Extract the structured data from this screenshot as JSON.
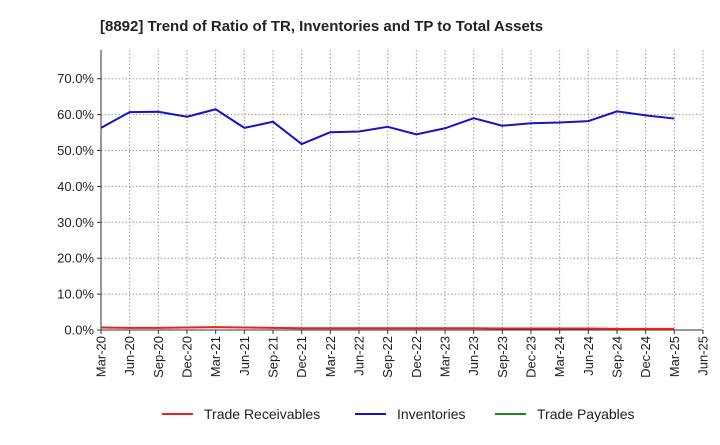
{
  "chart_data": {
    "type": "line",
    "title": "[8892]  Trend of Ratio of TR, Inventories and TP to Total Assets",
    "xlabel": "",
    "ylabel": "",
    "ylim": [
      0,
      0.78
    ],
    "yticks": [
      0,
      0.1,
      0.2,
      0.3,
      0.4,
      0.5,
      0.6,
      0.7
    ],
    "ytick_labels": [
      "0.0%",
      "10.0%",
      "20.0%",
      "30.0%",
      "40.0%",
      "50.0%",
      "60.0%",
      "70.0%"
    ],
    "x": [
      "Mar-20",
      "Jun-20",
      "Sep-20",
      "Dec-20",
      "Mar-21",
      "Jun-21",
      "Sep-21",
      "Dec-21",
      "Mar-22",
      "Jun-22",
      "Sep-22",
      "Dec-22",
      "Mar-23",
      "Jun-23",
      "Sep-23",
      "Dec-23",
      "Mar-24",
      "Jun-24",
      "Sep-24",
      "Dec-24",
      "Mar-25",
      "Jun-25"
    ],
    "xtick_labels": [
      "Mar-20",
      "Jun-20",
      "Sep-20",
      "Dec-20",
      "Mar-21",
      "Jun-21",
      "Sep-21",
      "Dec-21",
      "Mar-22",
      "Jun-22",
      "Sep-22",
      "Dec-22",
      "Mar-23",
      "Jun-23",
      "Sep-23",
      "Dec-23",
      "Mar-24",
      "Jun-24",
      "Sep-24",
      "Dec-24",
      "Mar-25",
      "Jun-25"
    ],
    "grid": true,
    "legend_position": "bottom",
    "series": [
      {
        "name": "Trade Receivables",
        "color": "#e8221c",
        "values": [
          0.007,
          0.006,
          0.006,
          0.007,
          0.008,
          0.007,
          0.006,
          0.005,
          0.005,
          0.005,
          0.005,
          0.005,
          0.005,
          0.005,
          0.004,
          0.004,
          0.004,
          0.004,
          0.003,
          0.003,
          0.003,
          null
        ]
      },
      {
        "name": "Inventories",
        "color": "#1414c8",
        "values": [
          0.563,
          0.607,
          0.608,
          0.594,
          0.615,
          0.563,
          0.58,
          0.518,
          0.551,
          0.553,
          0.566,
          0.545,
          0.562,
          0.59,
          0.569,
          0.576,
          0.578,
          0.582,
          0.609,
          0.598,
          0.589,
          null
        ]
      },
      {
        "name": "Trade Payables",
        "color": "#1a8a1a",
        "values": [
          null,
          null,
          null,
          null,
          null,
          null,
          null,
          null,
          null,
          null,
          null,
          null,
          null,
          null,
          null,
          null,
          null,
          null,
          null,
          null,
          null,
          null
        ]
      }
    ]
  }
}
